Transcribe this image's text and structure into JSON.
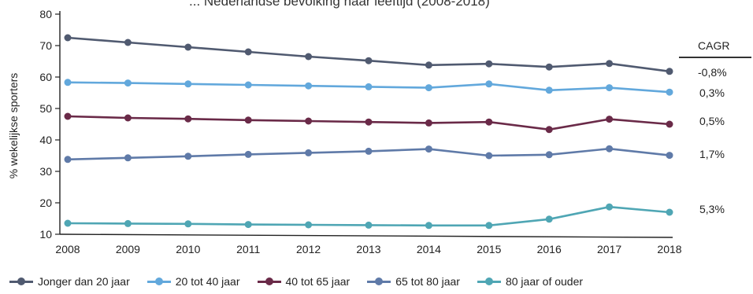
{
  "chart_data": {
    "type": "line",
    "title": "... Nederlandse bevolking naar leeftijd (2008-2018)",
    "ylabel": "% wekelijkse sporters",
    "xlabel": "",
    "x": [
      "2008",
      "2009",
      "2010",
      "2011",
      "2012",
      "2013",
      "2014",
      "2015",
      "2016",
      "2017",
      "2018"
    ],
    "yticks": [
      10,
      20,
      30,
      40,
      50,
      60,
      70,
      80
    ],
    "ylim": [
      10,
      80
    ],
    "grid": false,
    "legend_position": "bottom",
    "series": [
      {
        "name": "Jonger dan 20 jaar",
        "color": "#505a70",
        "values": [
          72.5,
          71.0,
          69.5,
          68.0,
          66.5,
          65.2,
          63.8,
          64.2,
          63.2,
          64.3,
          61.8
        ]
      },
      {
        "name": "20 tot 40 jaar",
        "color": "#62a8dc",
        "values": [
          58.3,
          58.1,
          57.8,
          57.5,
          57.2,
          56.9,
          56.6,
          57.8,
          55.8,
          56.6,
          55.2
        ]
      },
      {
        "name": "40 tot 65 jaar",
        "color": "#6a2a48",
        "values": [
          47.5,
          47.0,
          46.7,
          46.3,
          46.0,
          45.7,
          45.4,
          45.7,
          43.3,
          46.6,
          45.0
        ]
      },
      {
        "name": "65 tot 80 jaar",
        "color": "#5f7aa8",
        "values": [
          33.8,
          34.3,
          34.8,
          35.4,
          35.9,
          36.4,
          37.1,
          35.0,
          35.3,
          37.2,
          35.1
        ]
      },
      {
        "name": "80 jaar of ouder",
        "color": "#4fa6b4",
        "values": [
          13.5,
          13.4,
          13.3,
          13.1,
          13.0,
          12.9,
          12.8,
          12.8,
          14.8,
          18.7,
          17.0
        ]
      }
    ],
    "cagr": {
      "header": "CAGR",
      "values": [
        "-0,8%",
        "0,3%",
        "0,5%",
        "1,7%",
        "5,3%"
      ]
    }
  }
}
